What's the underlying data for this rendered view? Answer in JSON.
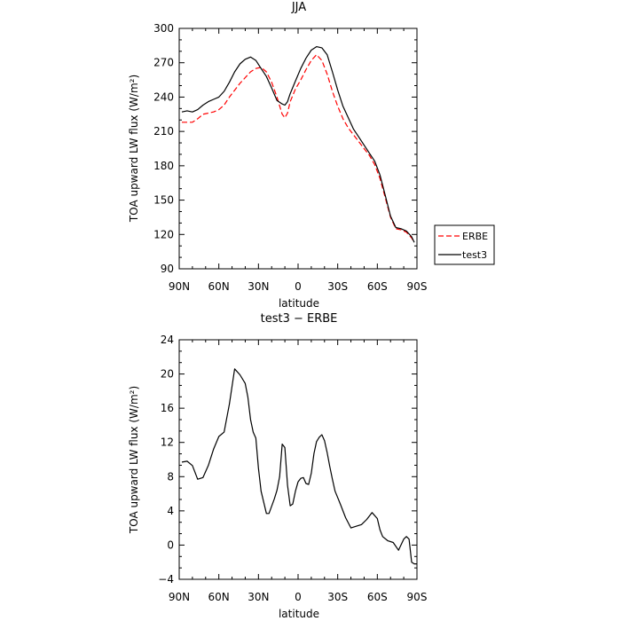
{
  "chart_data": [
    {
      "type": "line",
      "title": "JJA",
      "xlabel": "latitude",
      "ylabel": "TOA upward LW flux (W/m²)",
      "xlim": [
        90,
        -90
      ],
      "ylim": [
        90,
        300
      ],
      "x_ticks": [
        90,
        60,
        30,
        0,
        -30,
        -60,
        -90
      ],
      "x_tick_labels": [
        "90N",
        "60N",
        "30N",
        "0",
        "30S",
        "60S",
        "90S"
      ],
      "y_ticks": [
        90,
        120,
        150,
        180,
        210,
        240,
        270,
        300
      ],
      "y_tick_labels": [
        "90",
        "120",
        "150",
        "180",
        "210",
        "240",
        "270",
        "300"
      ],
      "grid": false,
      "legend_position": "right",
      "series": [
        {
          "name": "ERBE",
          "color": "#ff0000",
          "style": "dashed",
          "x": [
            88,
            84,
            80,
            76,
            72,
            68,
            64,
            60,
            56,
            52,
            48,
            44,
            40,
            36,
            32,
            28,
            24,
            20,
            16,
            12,
            10,
            8,
            6,
            2,
            -2,
            -6,
            -10,
            -14,
            -18,
            -22,
            -26,
            -30,
            -34,
            -38,
            -42,
            -46,
            -50,
            -54,
            -58,
            -62,
            -66,
            -70,
            -74,
            -78,
            -82,
            -86,
            -88
          ],
          "values": [
            218,
            218,
            218,
            221,
            225,
            226,
            227,
            229,
            233,
            240,
            246,
            252,
            257,
            262,
            265,
            266,
            262,
            253,
            240,
            225,
            222,
            226,
            236,
            247,
            255,
            264,
            272,
            277,
            272,
            260,
            245,
            232,
            221,
            213,
            207,
            201,
            195,
            189,
            181,
            169,
            152,
            135,
            125,
            124,
            122,
            117,
            113
          ]
        },
        {
          "name": "test3",
          "color": "#000000",
          "style": "solid",
          "x": [
            88,
            84,
            80,
            76,
            72,
            68,
            64,
            60,
            56,
            52,
            48,
            44,
            40,
            36,
            32,
            28,
            24,
            20,
            16,
            12,
            10,
            8,
            6,
            2,
            -2,
            -6,
            -10,
            -14,
            -18,
            -22,
            -26,
            -30,
            -34,
            -38,
            -42,
            -46,
            -50,
            -54,
            -58,
            -62,
            -66,
            -70,
            -74,
            -78,
            -82,
            -86,
            -88
          ],
          "values": [
            227,
            228,
            227,
            229,
            233,
            236,
            238,
            240,
            245,
            253,
            262,
            269,
            273,
            275,
            272,
            265,
            258,
            248,
            237,
            234,
            233,
            236,
            243,
            254,
            265,
            274,
            281,
            284,
            283,
            277,
            262,
            246,
            232,
            222,
            212,
            205,
            198,
            191,
            184,
            172,
            154,
            136,
            126,
            125,
            123,
            118,
            113
          ]
        }
      ]
    },
    {
      "type": "line",
      "title": "test3 − ERBE",
      "xlabel": "latitude",
      "ylabel": "TOA upward LW flux (W/m²)",
      "xlim": [
        90,
        -90
      ],
      "ylim": [
        -4,
        24
      ],
      "x_ticks": [
        90,
        60,
        30,
        0,
        -30,
        -60,
        -90
      ],
      "x_tick_labels": [
        "90N",
        "60N",
        "30N",
        "0",
        "30S",
        "60S",
        "90S"
      ],
      "y_ticks": [
        -4,
        0,
        4,
        8,
        12,
        16,
        20,
        24
      ],
      "y_tick_labels": [
        "−4",
        "0",
        "4",
        "8",
        "12",
        "16",
        "20",
        "24"
      ],
      "grid": false,
      "series": [
        {
          "color": "#000000",
          "style": "solid",
          "x": [
            88,
            84,
            80,
            76,
            72,
            68,
            64,
            60,
            56,
            52,
            48,
            44,
            40,
            38,
            36,
            34,
            32,
            30,
            28,
            24,
            22,
            18,
            16,
            14,
            12,
            10,
            8,
            6,
            4,
            2,
            0,
            -2,
            -4,
            -6,
            -8,
            -10,
            -12,
            -14,
            -16,
            -18,
            -20,
            -22,
            -24,
            -26,
            -28,
            -32,
            -36,
            -40,
            -44,
            -48,
            -52,
            -56,
            -60,
            -62,
            -64,
            -68,
            -72,
            -76,
            -80,
            -82,
            -84,
            -86,
            -88,
            -90
          ],
          "values": [
            9.7,
            9.8,
            9.3,
            7.7,
            7.9,
            9.3,
            11.2,
            12.7,
            13.2,
            16.5,
            20.6,
            19.9,
            18.9,
            17.3,
            14.7,
            13.2,
            12.5,
            9.0,
            6.3,
            3.7,
            3.7,
            5.4,
            6.4,
            8.0,
            11.8,
            11.4,
            7.0,
            4.6,
            4.8,
            6.3,
            7.4,
            7.8,
            7.9,
            7.2,
            7.1,
            8.4,
            10.7,
            12.1,
            12.6,
            12.9,
            12.2,
            10.8,
            9.2,
            7.7,
            6.3,
            4.8,
            3.2,
            2.0,
            2.2,
            2.4,
            3.0,
            3.8,
            3.1,
            1.8,
            1.0,
            0.5,
            0.3,
            -0.6,
            0.7,
            1.0,
            0.7,
            -2.0,
            -2.2,
            -2.2
          ]
        }
      ]
    }
  ]
}
